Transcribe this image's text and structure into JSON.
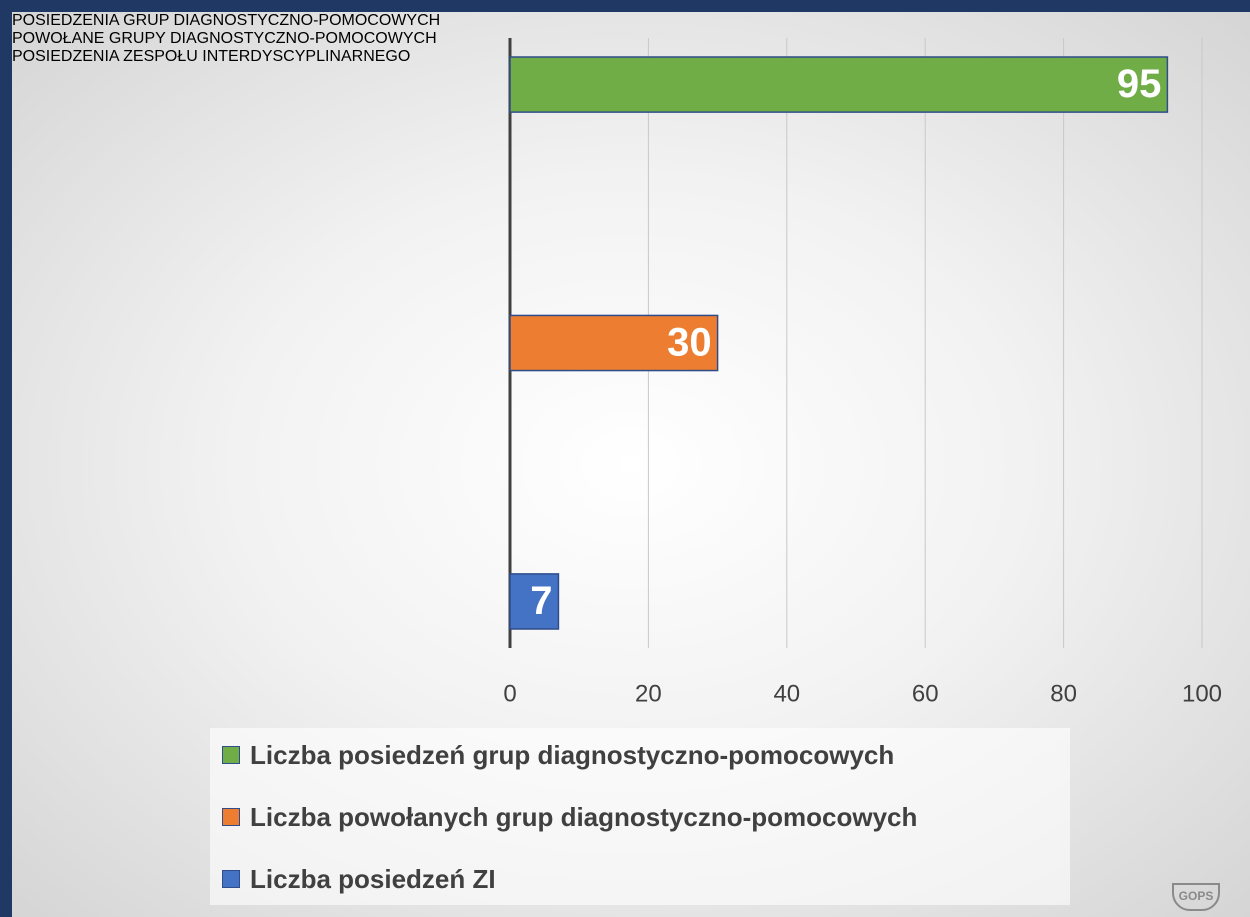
{
  "chart_data": {
    "type": "bar",
    "orientation": "horizontal",
    "categories": [
      "POSIEDZENIA GRUP DIAGNOSTYCZNO-POMOCOWYCH",
      "POWOŁANE GRUPY DIAGNOSTYCZNO-POMOCOWYCH",
      "POSIEDZENIA ZESPOŁU INTERDYSCYPLINARNEGO"
    ],
    "series": [
      {
        "name": "Liczba posiedzeń grup diagnostyczno-pomocowych",
        "color": "#70ad47",
        "values": [
          95,
          null,
          null
        ]
      },
      {
        "name": "Liczba powołanych grup diagnostyczno-pomocowych",
        "color": "#ed7d31",
        "values": [
          null,
          30,
          null
        ]
      },
      {
        "name": "Liczba posiedzeń ZI",
        "color": "#4472c4",
        "values": [
          null,
          null,
          7
        ]
      }
    ],
    "xlim": [
      0,
      100
    ],
    "xticks": [
      0,
      20,
      40,
      60,
      80,
      100
    ],
    "grid": true,
    "legend": "bottom",
    "logo": "GOPS"
  }
}
